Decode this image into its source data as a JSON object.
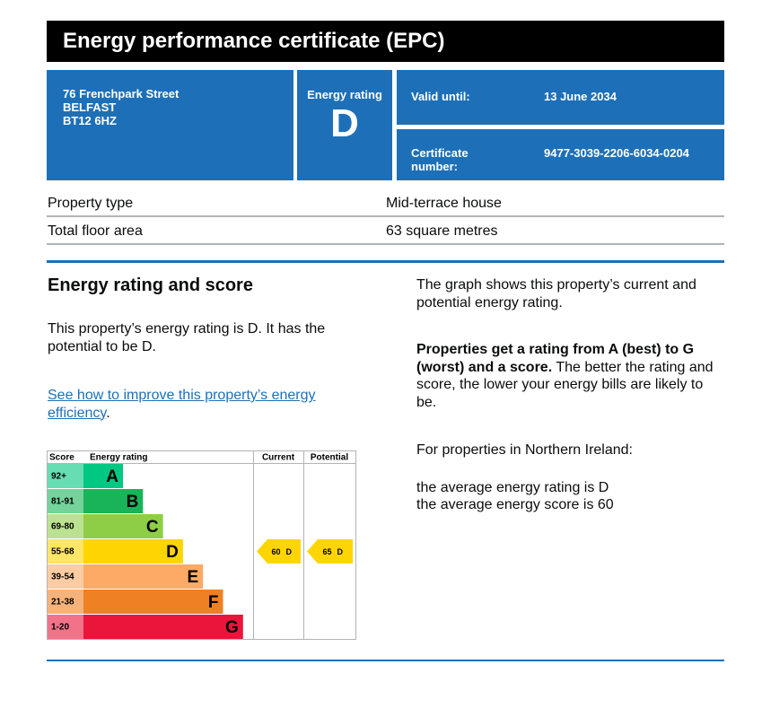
{
  "header": {
    "title": "Energy performance certificate (EPC)"
  },
  "address": [
    "76 Frenchpark Street",
    "BELFAST",
    "BT12 6HZ"
  ],
  "rating": {
    "label": "Energy rating",
    "value": "D"
  },
  "valid": {
    "label": "Valid until:",
    "value": "13 June 2034"
  },
  "certificate": {
    "label": "Certificate number:",
    "value": "9477-3039-2206-6034-0204"
  },
  "property": [
    [
      "Property type",
      "Mid-terrace house"
    ],
    [
      "Total floor area",
      "63 square metres"
    ]
  ],
  "section": {
    "title": "Energy rating and score",
    "summary": "This property’s energy rating is D. It has the potential to be D.",
    "link": "See how to improve this property’s energy efficiency",
    "link_end": "."
  },
  "rating_chart": {
    "headers": [
      "Score",
      "Energy rating",
      "Current",
      "Potential"
    ],
    "bands": [
      {
        "score": "92+",
        "letter": "A",
        "color": "#00c781"
      },
      {
        "score": "81-91",
        "letter": "B",
        "color": "#19b459"
      },
      {
        "score": "69-80",
        "letter": "C",
        "color": "#8dce46"
      },
      {
        "score": "55-68",
        "letter": "D",
        "color": "#ffd500"
      },
      {
        "score": "39-54",
        "letter": "E",
        "color": "#fcaa65"
      },
      {
        "score": "21-38",
        "letter": "F",
        "color": "#ef8023"
      },
      {
        "score": "1-20",
        "letter": "G",
        "color": "#e9153b"
      }
    ],
    "current": {
      "score": 60,
      "letter": "D"
    },
    "potential": {
      "score": 65,
      "letter": "D"
    }
  },
  "aside": {
    "intro": "The graph shows this property’s current and potential energy rating.",
    "bold": "Properties get a rating from A (best) to G (worst) and a score.",
    "rest": " The better the rating and score, the lower your energy bills are likely to be.",
    "ni": "For properties in Northern Ireland:",
    "avg_rating": "the average energy rating is D",
    "avg_score": "the average energy score is 60"
  }
}
